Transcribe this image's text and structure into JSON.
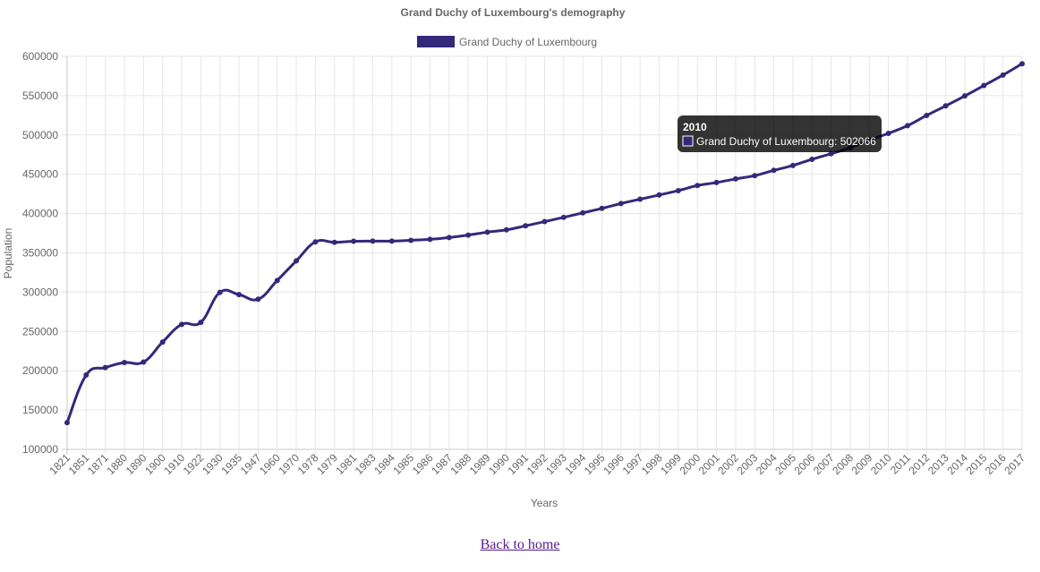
{
  "chart_data": {
    "type": "line",
    "title": "Grand Duchy of Luxembourg's demography",
    "xlabel": "Years",
    "ylabel": "Population",
    "ylim": [
      100000,
      600000
    ],
    "ytick_step": 50000,
    "grid": true,
    "legend_position": "top",
    "series": [
      {
        "name": "Grand Duchy of Luxembourg",
        "color": "#33297a",
        "values": [
          134000,
          194719,
          204028,
          210507,
          211088,
          236543,
          259027,
          261643,
          299782,
          296913,
          290992,
          314889,
          339841,
          364000,
          363450,
          364800,
          365000,
          365000,
          366000,
          367200,
          369500,
          372600,
          376400,
          379300,
          384400,
          389800,
          395200,
          400900,
          406600,
          412800,
          418300,
          423700,
          429200,
          435700,
          439500,
          444050,
          448300,
          455000,
          461230,
          469086,
          476187,
          483799,
          493500,
          502066,
          511840,
          524853,
          537039,
          549680,
          562958,
          576249,
          590667
        ]
      }
    ],
    "categories": [
      "1821",
      "1851",
      "1871",
      "1880",
      "1890",
      "1900",
      "1910",
      "1922",
      "1930",
      "1935",
      "1947",
      "1960",
      "1970",
      "1978",
      "1979",
      "1981",
      "1983",
      "1984",
      "1985",
      "1986",
      "1987",
      "1988",
      "1989",
      "1990",
      "1991",
      "1992",
      "1993",
      "1994",
      "1995",
      "1996",
      "1997",
      "1998",
      "1999",
      "2000",
      "2001",
      "2002",
      "2003",
      "2004",
      "2005",
      "2006",
      "2007",
      "2008",
      "2009",
      "2010",
      "2011",
      "2012",
      "2013",
      "2014",
      "2015",
      "2016",
      "2017"
    ],
    "tooltip": {
      "title": "2010",
      "label": "Grand Duchy of Luxembourg: 502066"
    }
  },
  "footer": {
    "back_link": "Back to home"
  }
}
